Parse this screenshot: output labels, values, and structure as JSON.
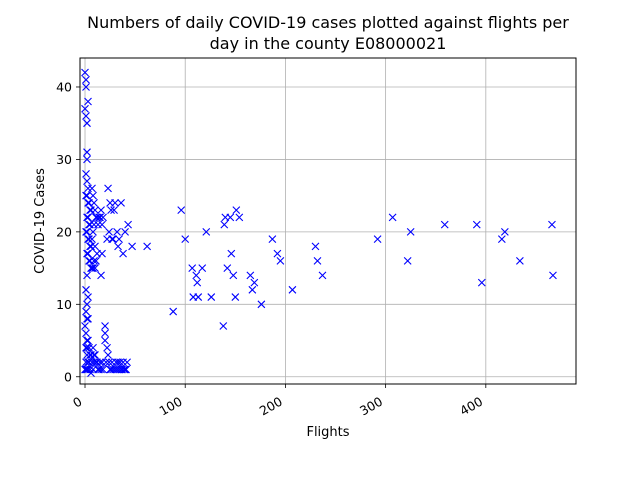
{
  "chart_data": {
    "type": "scatter",
    "title": [
      "Numbers of daily COVID-19 cases plotted against flights per",
      "day in the county E08000021"
    ],
    "xlabel": "Flights",
    "ylabel": "COVID-19 Cases",
    "xlim": [
      -5,
      490
    ],
    "ylim": [
      -1,
      44
    ],
    "xticks": [
      0,
      100,
      200,
      300,
      400
    ],
    "yticks": [
      0,
      10,
      20,
      30,
      40
    ],
    "grid": true,
    "marker": "x",
    "color": "#0000ff",
    "points": [
      [
        0,
        42
      ],
      [
        1,
        41
      ],
      [
        1,
        40
      ],
      [
        0,
        37
      ],
      [
        1,
        36
      ],
      [
        2,
        35
      ],
      [
        3,
        38
      ],
      [
        2,
        31
      ],
      [
        2,
        30
      ],
      [
        1,
        28
      ],
      [
        2,
        27
      ],
      [
        3,
        26
      ],
      [
        1,
        25
      ],
      [
        2,
        25
      ],
      [
        3,
        24
      ],
      [
        4,
        24
      ],
      [
        5,
        23
      ],
      [
        6,
        23
      ],
      [
        2,
        22
      ],
      [
        3,
        22
      ],
      [
        4,
        21
      ],
      [
        5,
        21
      ],
      [
        1,
        20
      ],
      [
        2,
        20
      ],
      [
        3,
        19
      ],
      [
        4,
        19
      ],
      [
        5,
        18
      ],
      [
        6,
        18
      ],
      [
        2,
        17
      ],
      [
        3,
        17
      ],
      [
        4,
        16
      ],
      [
        5,
        16
      ],
      [
        6,
        15
      ],
      [
        7,
        15
      ],
      [
        2,
        14
      ],
      [
        1,
        12
      ],
      [
        3,
        11
      ],
      [
        2,
        10
      ],
      [
        1,
        9
      ],
      [
        3,
        8
      ],
      [
        2,
        8
      ],
      [
        0,
        7
      ],
      [
        1,
        6
      ],
      [
        2,
        5
      ],
      [
        3,
        5
      ],
      [
        1,
        4
      ],
      [
        2,
        4
      ],
      [
        4,
        4
      ],
      [
        5,
        3
      ],
      [
        6,
        3
      ],
      [
        2,
        3
      ],
      [
        3,
        2
      ],
      [
        4,
        2
      ],
      [
        1,
        2
      ],
      [
        2,
        1
      ],
      [
        3,
        1
      ],
      [
        5,
        1
      ],
      [
        1,
        1
      ],
      [
        0,
        1
      ],
      [
        6,
        0.5
      ],
      [
        7,
        26
      ],
      [
        8,
        25
      ],
      [
        9,
        24
      ],
      [
        10,
        23
      ],
      [
        11,
        22
      ],
      [
        12,
        22
      ],
      [
        13,
        21
      ],
      [
        14,
        22
      ],
      [
        15,
        22
      ],
      [
        16,
        23
      ],
      [
        17,
        21
      ],
      [
        18,
        22
      ],
      [
        7,
        19
      ],
      [
        8,
        20
      ],
      [
        9,
        21
      ],
      [
        10,
        18
      ],
      [
        11,
        16
      ],
      [
        12,
        17
      ],
      [
        8,
        15
      ],
      [
        9,
        16
      ],
      [
        10,
        15
      ],
      [
        8,
        4
      ],
      [
        9,
        3
      ],
      [
        10,
        3
      ],
      [
        11,
        2
      ],
      [
        12,
        2
      ],
      [
        13,
        1
      ],
      [
        14,
        1
      ],
      [
        15,
        2
      ],
      [
        16,
        1
      ],
      [
        17,
        2
      ],
      [
        18,
        1
      ],
      [
        7,
        2
      ],
      [
        8,
        1
      ],
      [
        9,
        2
      ],
      [
        16,
        14
      ],
      [
        17,
        17
      ],
      [
        20,
        7
      ],
      [
        20,
        6
      ],
      [
        20,
        5
      ],
      [
        22,
        4
      ],
      [
        23,
        3
      ],
      [
        24,
        2
      ],
      [
        25,
        1
      ],
      [
        21,
        2
      ],
      [
        26,
        1
      ],
      [
        27,
        2
      ],
      [
        28,
        1
      ],
      [
        23,
        26
      ],
      [
        24,
        20
      ],
      [
        25,
        24
      ],
      [
        26,
        23
      ],
      [
        27,
        19
      ],
      [
        28,
        19
      ],
      [
        29,
        23
      ],
      [
        30,
        24
      ],
      [
        32,
        20
      ],
      [
        33,
        18
      ],
      [
        34,
        19
      ],
      [
        36,
        24
      ],
      [
        38,
        17
      ],
      [
        40,
        20
      ],
      [
        43,
        21
      ],
      [
        47,
        18
      ],
      [
        22,
        19
      ],
      [
        30,
        1
      ],
      [
        31,
        2
      ],
      [
        32,
        1
      ],
      [
        33,
        2
      ],
      [
        34,
        1
      ],
      [
        35,
        2
      ],
      [
        36,
        1
      ],
      [
        37,
        1
      ],
      [
        38,
        2
      ],
      [
        39,
        1
      ],
      [
        40,
        1
      ],
      [
        41,
        1
      ],
      [
        42,
        2
      ],
      [
        62,
        18
      ],
      [
        88,
        9
      ],
      [
        96,
        23
      ],
      [
        100,
        19
      ],
      [
        107,
        15
      ],
      [
        108,
        11
      ],
      [
        111,
        14
      ],
      [
        112,
        13
      ],
      [
        113,
        11
      ],
      [
        117,
        15
      ],
      [
        121,
        20
      ],
      [
        126,
        11
      ],
      [
        138,
        7
      ],
      [
        139,
        21
      ],
      [
        140,
        22
      ],
      [
        142,
        15
      ],
      [
        145,
        22
      ],
      [
        146,
        17
      ],
      [
        148,
        14
      ],
      [
        150,
        11
      ],
      [
        151,
        23
      ],
      [
        154,
        22
      ],
      [
        165,
        14
      ],
      [
        167,
        12
      ],
      [
        169,
        13
      ],
      [
        176,
        10
      ],
      [
        187,
        19
      ],
      [
        192,
        17
      ],
      [
        195,
        16
      ],
      [
        207,
        12
      ],
      [
        230,
        18
      ],
      [
        232,
        16
      ],
      [
        237,
        14
      ],
      [
        292,
        19
      ],
      [
        307,
        22
      ],
      [
        322,
        16
      ],
      [
        325,
        20
      ],
      [
        359,
        21
      ],
      [
        391,
        21
      ],
      [
        396,
        13
      ],
      [
        416,
        19
      ],
      [
        419,
        20
      ],
      [
        434,
        16
      ],
      [
        466,
        21
      ],
      [
        467,
        14
      ]
    ]
  }
}
